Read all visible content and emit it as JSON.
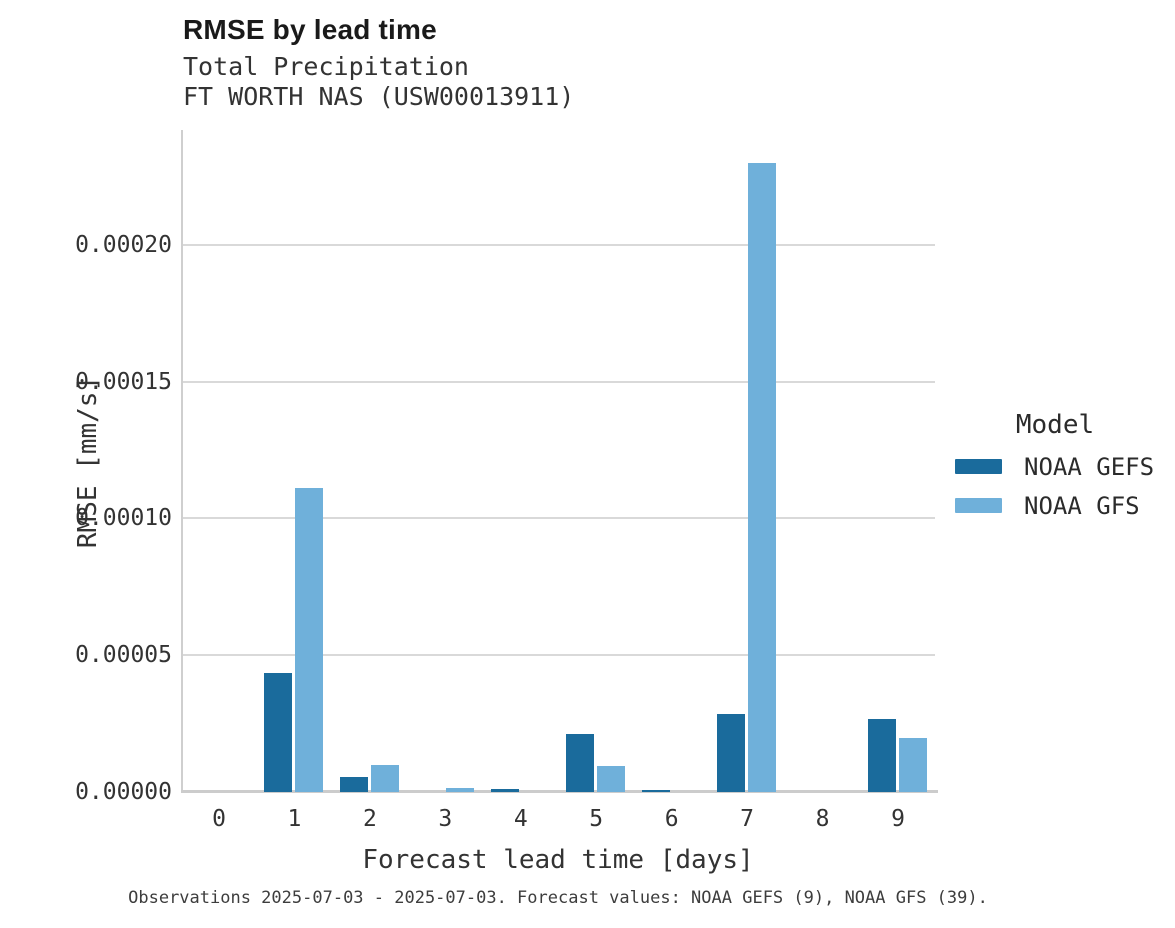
{
  "header": {
    "title": "RMSE by lead time",
    "subtitle_line1": "Total Precipitation",
    "subtitle_line2": "FT WORTH NAS (USW00013911)"
  },
  "chart_data": {
    "type": "bar",
    "title": "RMSE by lead time",
    "subtitle": "Total Precipitation",
    "station": "FT WORTH NAS (USW00013911)",
    "categories": [
      "0",
      "1",
      "2",
      "3",
      "4",
      "5",
      "6",
      "7",
      "8",
      "9"
    ],
    "series": [
      {
        "name": "NOAA GEFS",
        "color": "#1a6b9c",
        "values": [
          0,
          4.34e-05,
          5.5e-06,
          0,
          1.2e-06,
          2.12e-05,
          8e-07,
          2.85e-05,
          0,
          2.66e-05
        ]
      },
      {
        "name": "NOAA GFS",
        "color": "#6fb0da",
        "values": [
          0,
          0.0001113,
          9.8e-06,
          1.5e-06,
          0,
          9.5e-06,
          0,
          0.00023,
          0,
          1.97e-05
        ]
      }
    ],
    "xlabel": "Forecast lead time [days]",
    "ylabel": "RMSE [mm/s]",
    "ylim": [
      0,
      0.000242
    ],
    "yticks": [
      0,
      5e-05,
      0.0001,
      0.00015,
      0.0002
    ],
    "ytick_labels": [
      "0.00000",
      "0.00005",
      "0.00010",
      "0.00015",
      "0.00020"
    ],
    "legend_title": "Model",
    "legend_position": "right",
    "grid": true
  },
  "footer": {
    "caption": "Observations 2025-07-03 - 2025-07-03. Forecast values: NOAA GEFS (9), NOAA GFS (39)."
  },
  "colors": {
    "gridline": "#d9d9d9",
    "axis_line": "#cccccc",
    "gefs_dark_blue": "#1a6b9c",
    "gfs_light_blue": "#6fb0da"
  }
}
